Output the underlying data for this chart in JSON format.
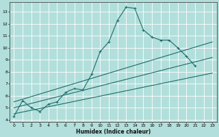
{
  "title": "",
  "xlabel": "Humidex (Indice chaleur)",
  "ylabel": "",
  "bg_color": "#b2dfdb",
  "grid_color": "#ffffff",
  "line_color": "#1a6b6b",
  "xlim": [
    -0.5,
    23.5
  ],
  "ylim": [
    3.8,
    13.8
  ],
  "xticks": [
    0,
    1,
    2,
    3,
    4,
    5,
    6,
    7,
    8,
    9,
    10,
    11,
    12,
    13,
    14,
    15,
    16,
    17,
    18,
    19,
    20,
    21,
    22,
    23
  ],
  "yticks": [
    4,
    5,
    6,
    7,
    8,
    9,
    10,
    11,
    12,
    13
  ],
  "curve1_x": [
    0,
    1,
    2,
    3,
    4,
    5,
    6,
    7,
    8,
    9,
    10,
    11,
    12,
    13,
    14,
    15,
    16,
    17,
    18,
    19,
    20,
    21
  ],
  "curve1_y": [
    4.3,
    5.6,
    5.0,
    4.7,
    5.3,
    5.5,
    6.3,
    6.6,
    6.5,
    7.8,
    9.7,
    10.5,
    12.3,
    13.4,
    13.3,
    11.5,
    10.9,
    10.65,
    10.65,
    10.0,
    9.3,
    8.5
  ],
  "curve2_x": [
    0,
    23
  ],
  "curve2_y": [
    4.5,
    7.9
  ],
  "curve3_x": [
    0,
    23
  ],
  "curve3_y": [
    5.5,
    10.5
  ],
  "curve4_x": [
    0,
    23
  ],
  "curve4_y": [
    5.0,
    9.2
  ],
  "figsize": [
    3.2,
    2.0
  ],
  "dpi": 100,
  "tick_fontsize": 4.5,
  "label_fontsize": 5.5
}
